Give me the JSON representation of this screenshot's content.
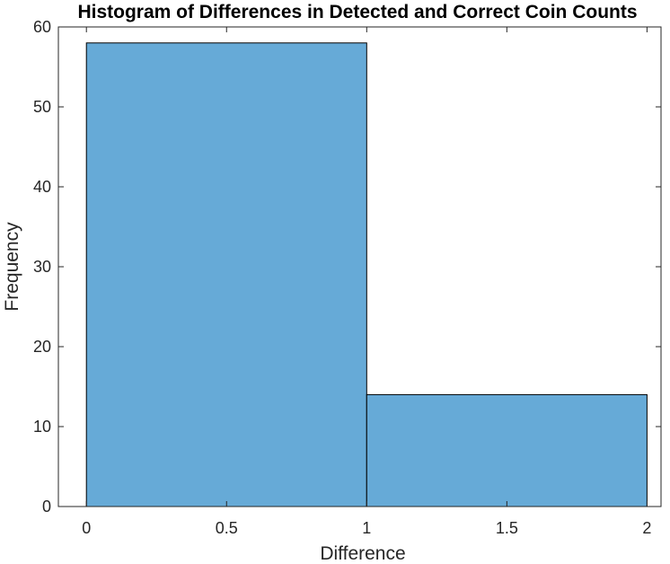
{
  "chart_data": {
    "type": "bar",
    "title": "Histogram of Differences in Detected and Correct Coin Counts",
    "xlabel": "Difference",
    "ylabel": "Frequency",
    "bin_edges": [
      0,
      1,
      2
    ],
    "values": [
      58,
      14
    ],
    "xlim": [
      -0.1,
      2.05
    ],
    "ylim": [
      0,
      60
    ],
    "xticks": [
      "0",
      "0.5",
      "1",
      "1.5",
      "2"
    ],
    "xtick_values": [
      0,
      0.5,
      1,
      1.5,
      2
    ],
    "yticks": [
      "0",
      "10",
      "20",
      "30",
      "40",
      "50",
      "60"
    ],
    "ytick_values": [
      0,
      10,
      20,
      30,
      40,
      50,
      60
    ],
    "bar_color": "#66aad7",
    "edge_color": "#000000",
    "grid": false,
    "legend": "none"
  }
}
